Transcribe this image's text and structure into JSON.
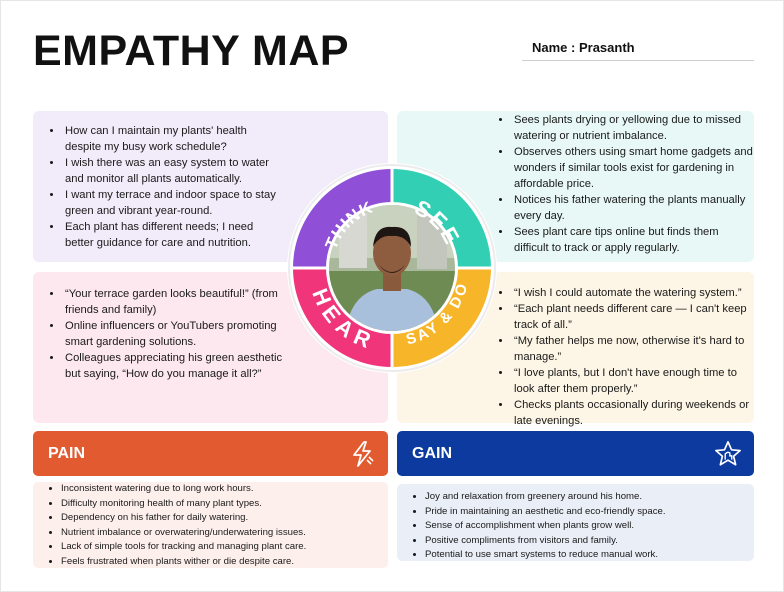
{
  "header": {
    "title": "EMPATHY MAP",
    "name_label": "Name : Prasanth"
  },
  "quadrants": {
    "think": {
      "label": "THINK",
      "color": "#8f4fd6",
      "items": [
        "How can I maintain my plants' health despite my busy work schedule?",
        "I wish there was an easy system to water and monitor all plants automatically.",
        "I want my terrace and indoor space to stay green and vibrant year-round.",
        "Each plant has different needs; I need better guidance for care and nutrition."
      ]
    },
    "see": {
      "label": "SEE",
      "color": "#33cfb4",
      "items": [
        "Sees plants drying or yellowing due to missed watering or nutrient imbalance.",
        "Observes others using smart home gadgets and wonders if similar tools exist for gardening in affordable price.",
        "Notices his father watering the plants manually every day.",
        "Sees plant care tips online but finds them difficult to track or apply regularly."
      ]
    },
    "hear": {
      "label": "HEAR",
      "color": "#f0357a",
      "items": [
        "“Your terrace garden looks beautiful!” (from friends and family)",
        "Online influencers or YouTubers promoting smart gardening solutions.",
        "Colleagues appreciating his green aesthetic but saying, “How do you manage it all?”"
      ]
    },
    "say_do": {
      "label": "SAY & DO",
      "color": "#f7b52a",
      "items": [
        "“I wish I could automate the watering system.”",
        "“Each plant needs different care — I can't keep track of all.”",
        "“My father helps me now, otherwise it's hard to manage.”",
        "“I love plants, but I don't have enough time to look after them properly.”",
        "Checks plants occasionally during weekends or late evenings."
      ]
    }
  },
  "pain": {
    "label": "PAIN",
    "icon": "lightning-bolt-icon",
    "color": "#e25a2f",
    "items": [
      "Inconsistent watering due to long work hours.",
      "Difficulty monitoring health of many plant types.",
      "Dependency on his father for daily watering.",
      "Nutrient imbalance or overwatering/underwatering issues.",
      "Lack of simple tools for tracking and managing plant care.",
      "Feels frustrated when plants wither or die despite care."
    ]
  },
  "gain": {
    "label": "GAIN",
    "icon": "star-badge-icon",
    "color": "#0d3a9e",
    "items": [
      "Joy and relaxation from greenery around his home.",
      "Pride in maintaining an aesthetic and eco-friendly space.",
      "Sense of accomplishment when plants grow well.",
      "Positive compliments from visitors and family.",
      "Potential to use smart systems to reduce manual work."
    ]
  }
}
